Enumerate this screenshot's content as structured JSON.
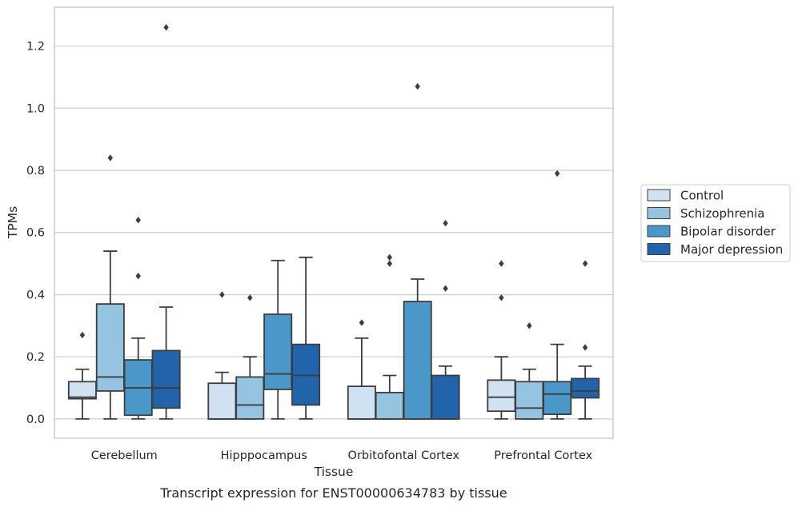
{
  "chart_data": {
    "type": "box",
    "caption": "Transcript expression for ENST00000634783 by tissue",
    "xlabel": "Tissue",
    "ylabel": "TPMs",
    "ylim": [
      -0.062,
      1.325
    ],
    "yticks": [
      0.0,
      0.2,
      0.4,
      0.6,
      0.8,
      1.0,
      1.2
    ],
    "ytick_labels": [
      "0.0",
      "0.2",
      "0.4",
      "0.6",
      "0.8",
      "1.0",
      "1.2"
    ],
    "grid": "horizontal",
    "legend_position": "right",
    "categories": [
      "Cerebellum",
      "Hipppocampus",
      "Orbitofontal Cortex",
      "Prefrontal Cortex"
    ],
    "series": [
      {
        "name": "Control",
        "color": "#d0e1f2",
        "boxes": [
          {
            "whislo": 0.0,
            "q1": 0.065,
            "med": 0.07,
            "q3": 0.12,
            "whishi": 0.16,
            "fliers": [
              0.27
            ]
          },
          {
            "whislo": 0.0,
            "q1": 0.0,
            "med": 0.0,
            "q3": 0.115,
            "whishi": 0.15,
            "fliers": [
              0.4
            ]
          },
          {
            "whislo": 0.0,
            "q1": 0.0,
            "med": 0.0,
            "q3": 0.105,
            "whishi": 0.26,
            "fliers": [
              0.31
            ]
          },
          {
            "whislo": 0.0,
            "q1": 0.025,
            "med": 0.07,
            "q3": 0.125,
            "whishi": 0.2,
            "fliers": [
              0.39,
              0.5
            ]
          }
        ]
      },
      {
        "name": "Schizophrenia",
        "color": "#94c4df",
        "boxes": [
          {
            "whislo": 0.0,
            "q1": 0.09,
            "med": 0.135,
            "q3": 0.37,
            "whishi": 0.54,
            "fliers": [
              0.84
            ]
          },
          {
            "whislo": 0.0,
            "q1": 0.0,
            "med": 0.045,
            "q3": 0.135,
            "whishi": 0.2,
            "fliers": [
              0.39
            ]
          },
          {
            "whislo": 0.0,
            "q1": 0.0,
            "med": 0.0,
            "q3": 0.085,
            "whishi": 0.14,
            "fliers": [
              0.5,
              0.52
            ]
          },
          {
            "whislo": 0.0,
            "q1": 0.0,
            "med": 0.035,
            "q3": 0.12,
            "whishi": 0.16,
            "fliers": [
              0.3
            ]
          }
        ]
      },
      {
        "name": "Bipolar disorder",
        "color": "#4a98c9",
        "boxes": [
          {
            "whislo": 0.0,
            "q1": 0.012,
            "med": 0.1,
            "q3": 0.19,
            "whishi": 0.26,
            "fliers": [
              0.46,
              0.64
            ]
          },
          {
            "whislo": 0.0,
            "q1": 0.095,
            "med": 0.145,
            "q3": 0.337,
            "whishi": 0.51,
            "fliers": []
          },
          {
            "whislo": 0.0,
            "q1": 0.0,
            "med": 0.0,
            "q3": 0.378,
            "whishi": 0.45,
            "fliers": [
              1.07
            ]
          },
          {
            "whislo": 0.0,
            "q1": 0.015,
            "med": 0.08,
            "q3": 0.12,
            "whishi": 0.24,
            "fliers": [
              0.79
            ]
          }
        ]
      },
      {
        "name": "Major depression",
        "color": "#2164ab",
        "boxes": [
          {
            "whislo": 0.0,
            "q1": 0.035,
            "med": 0.1,
            "q3": 0.22,
            "whishi": 0.36,
            "fliers": [
              1.26
            ]
          },
          {
            "whislo": 0.0,
            "q1": 0.045,
            "med": 0.14,
            "q3": 0.24,
            "whishi": 0.52,
            "fliers": []
          },
          {
            "whislo": 0.0,
            "q1": 0.0,
            "med": 0.0,
            "q3": 0.14,
            "whishi": 0.17,
            "fliers": [
              0.42,
              0.63
            ]
          },
          {
            "whislo": 0.0,
            "q1": 0.068,
            "med": 0.09,
            "q3": 0.13,
            "whishi": 0.17,
            "fliers": [
              0.23,
              0.5
            ]
          }
        ]
      }
    ]
  }
}
